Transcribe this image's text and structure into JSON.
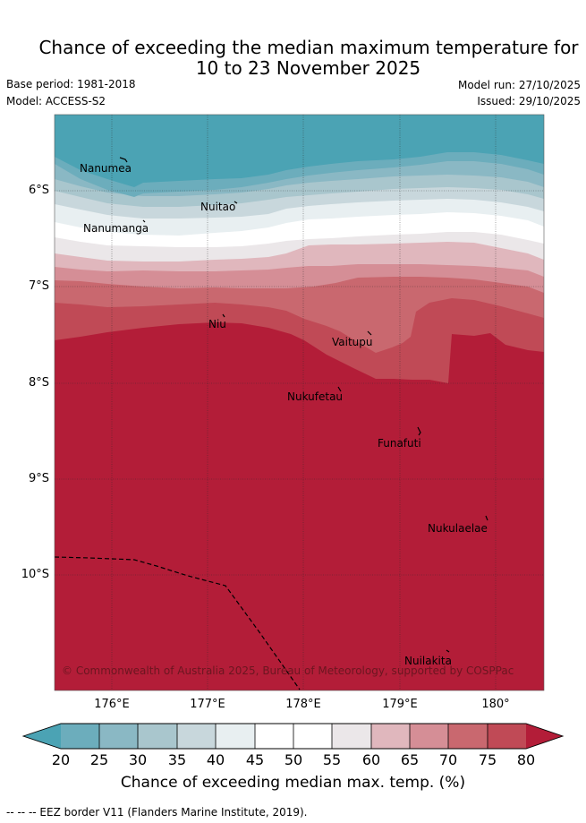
{
  "header": {
    "title_line1": "Chance of exceeding the median maximum temperature for",
    "title_line2": "10 to 23 November 2025",
    "base_period": "Base period: 1981-2018",
    "model": "Model: ACCESS-S2",
    "model_run": "Model run: 27/10/2025",
    "issued": "Issued: 29/10/2025"
  },
  "map": {
    "lat_labels": [
      "6°S",
      "7°S",
      "8°S",
      "9°S",
      "10°S"
    ],
    "lon_labels": [
      "176°E",
      "177°E",
      "178°E",
      "179°E",
      "180°"
    ],
    "places": [
      "Nanumea",
      "Nuitao",
      "Nanumanga",
      "Niu",
      "Vaitupu",
      "Nukufetau",
      "Funafuti",
      "Nukulaelae",
      "Nuilakita"
    ],
    "copyright": "© Commonwealth of Australia 2025, Bureau of Meteorology, supported by COSPPac"
  },
  "colorbar": {
    "ticks": [
      "20",
      "25",
      "30",
      "35",
      "40",
      "45",
      "50",
      "55",
      "60",
      "65",
      "70",
      "75",
      "80"
    ],
    "label": "Chance of exceeding median max. temp. (%)",
    "colors": [
      "#4ba3b4",
      "#6cadbc",
      "#8ab8c4",
      "#a9c6cd",
      "#c8d7dc",
      "#e8eff1",
      "#ffffff",
      "#ffffff",
      "#ebe7e9",
      "#e0b7bd",
      "#d58e96",
      "#c9686f",
      "#c04a56",
      "#b31d38"
    ]
  },
  "footer": {
    "eez_note": "--  --  -- EEZ border V11 (Flanders Marine Institute, 2019)."
  }
}
